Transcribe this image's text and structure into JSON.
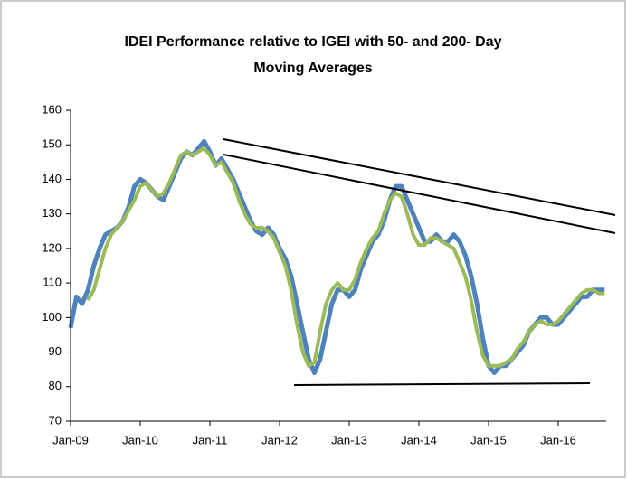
{
  "chart_data": {
    "type": "line",
    "title": [
      "IDEI Performance relative to IGEI with 50- and 200- Day",
      "Moving Averages"
    ],
    "x": [
      "Jan-09",
      null,
      null,
      null,
      null,
      null,
      null,
      null,
      null,
      null,
      null,
      null,
      "Jan-10",
      null,
      null,
      null,
      null,
      null,
      null,
      null,
      null,
      null,
      null,
      null,
      "Jan-11",
      null,
      null,
      null,
      null,
      null,
      null,
      null,
      null,
      null,
      null,
      null,
      "Jan-12",
      null,
      null,
      null,
      null,
      null,
      null,
      null,
      null,
      null,
      null,
      null,
      "Jan-13",
      null,
      null,
      null,
      null,
      null,
      null,
      null,
      null,
      null,
      null,
      null,
      "Jan-14",
      null,
      null,
      null,
      null,
      null,
      null,
      null,
      null,
      null,
      null,
      null,
      "Jan-15",
      null,
      null,
      null,
      null,
      null,
      null,
      null,
      null,
      null,
      null,
      null,
      "Jan-16",
      null,
      null,
      null,
      null,
      null,
      null,
      null,
      null
    ],
    "series": [
      {
        "color": "#4f81bd",
        "values": [
          97,
          106,
          104,
          108,
          115,
          120,
          124,
          125,
          126,
          128,
          132,
          138,
          140,
          139,
          137,
          135,
          134,
          138,
          142,
          146,
          148,
          147,
          149,
          151,
          148,
          144,
          146,
          143,
          140,
          136,
          132,
          128,
          125,
          124,
          126,
          124,
          120,
          117,
          112,
          104,
          96,
          88,
          84,
          88,
          96,
          104,
          108,
          108,
          106,
          108,
          114,
          118,
          122,
          124,
          128,
          134,
          138,
          138,
          134,
          130,
          126,
          122,
          122,
          124,
          122,
          122,
          124,
          122,
          118,
          112,
          104,
          94,
          86,
          84,
          86,
          86,
          88,
          90,
          92,
          96,
          98,
          100,
          100,
          98,
          98,
          100,
          102,
          104,
          106,
          106,
          108,
          108,
          108
        ]
      },
      {
        "color": "#9bbb59",
        "values": [
          null,
          null,
          null,
          105,
          108,
          114,
          120,
          124,
          126,
          128,
          131,
          134,
          138,
          139,
          137,
          135,
          136,
          139,
          143,
          147,
          148,
          147,
          148,
          149,
          147,
          144,
          145,
          142,
          139,
          134,
          130,
          127,
          126,
          126,
          125,
          123,
          119,
          115,
          108,
          98,
          90,
          86,
          87,
          96,
          104,
          108,
          110,
          108,
          108,
          111,
          116,
          120,
          123,
          125,
          130,
          134,
          136,
          135,
          130,
          124,
          121,
          121,
          123,
          123,
          122,
          121,
          120,
          116,
          112,
          105,
          96,
          89,
          86,
          86,
          86,
          87,
          88,
          91,
          93,
          96,
          98,
          99,
          98,
          98,
          99,
          101,
          103,
          105,
          107,
          108,
          108,
          107,
          107
        ]
      }
    ],
    "ylim": [
      70,
      160
    ],
    "yticks": [
      70,
      80,
      90,
      100,
      110,
      120,
      130,
      140,
      150,
      160
    ]
  }
}
